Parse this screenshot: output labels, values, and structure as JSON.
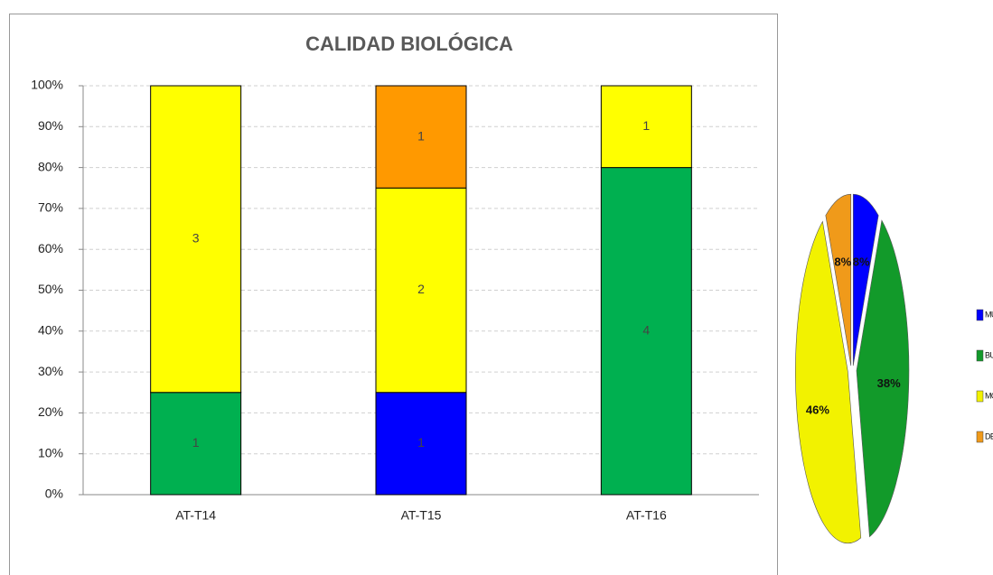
{
  "chart_data": [
    {
      "type": "bar",
      "stacked": "percent",
      "title": "CALIDAD BIOLÓGICA",
      "categories": [
        "AT-T14",
        "AT-T15",
        "AT-T16"
      ],
      "series": [
        {
          "color": "#0000ff",
          "values": [
            null,
            1,
            null
          ]
        },
        {
          "color": "#00b050",
          "values": [
            1,
            null,
            4
          ]
        },
        {
          "color": "#ffff00",
          "values": [
            3,
            2,
            1
          ]
        },
        {
          "color": "#ff9900",
          "values": [
            null,
            1,
            null
          ]
        }
      ],
      "ylim": [
        0,
        100
      ],
      "yticks": [
        {
          "value": 0,
          "label": "0%"
        },
        {
          "value": 10,
          "label": "10%"
        },
        {
          "value": 20,
          "label": "20%"
        },
        {
          "value": 30,
          "label": "30%"
        },
        {
          "value": 40,
          "label": "40%"
        },
        {
          "value": 50,
          "label": "50%"
        },
        {
          "value": 60,
          "label": "60%"
        },
        {
          "value": 70,
          "label": "70%"
        },
        {
          "value": 80,
          "label": "80%"
        },
        {
          "value": 90,
          "label": "90%"
        },
        {
          "value": 100,
          "label": "100%"
        }
      ],
      "grid": true
    },
    {
      "type": "pie",
      "categories": [
        "MUY BUENA",
        "BUENA",
        "MODERADA",
        "DEFICIENTE"
      ],
      "values": [
        8,
        38,
        46,
        8
      ],
      "value_labels": [
        "8%",
        "38%",
        "46%",
        "8%"
      ],
      "colors": [
        "#0000ff",
        "#129a2a",
        "#f2f200",
        "#f09a1a"
      ]
    }
  ]
}
